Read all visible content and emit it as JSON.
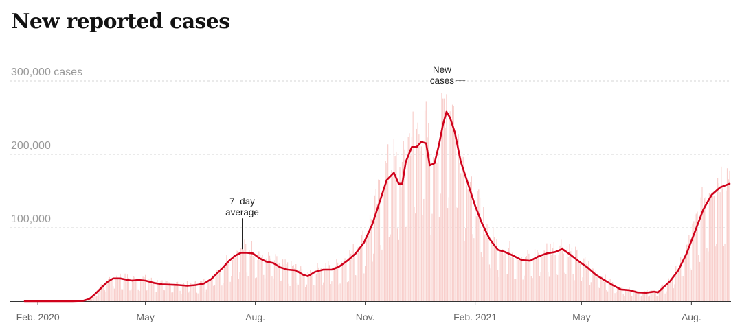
{
  "page": {
    "title": "New reported cases"
  },
  "chart_data": {
    "type": "bar",
    "title": "New reported cases",
    "ylim": [
      0,
      300000
    ],
    "y_ticks": [
      {
        "value": 300000,
        "label": "300,000 cases"
      },
      {
        "value": 200000,
        "label": "200,000"
      },
      {
        "value": 100000,
        "label": "100,000"
      }
    ],
    "x_ticks": [
      {
        "date": "2020-02-01",
        "label": "Feb. 2020"
      },
      {
        "date": "2020-05-01",
        "label": "May"
      },
      {
        "date": "2020-08-01",
        "label": "Aug."
      },
      {
        "date": "2020-11-01",
        "label": "Nov."
      },
      {
        "date": "2021-02-01",
        "label": "Feb. 2021"
      },
      {
        "date": "2021-05-01",
        "label": "May"
      },
      {
        "date": "2021-08-01",
        "label": "Aug."
      }
    ],
    "xlim": [
      "2020-01-21",
      "2021-09-02"
    ],
    "grid": true,
    "series": [
      {
        "name": "New cases",
        "type": "bar",
        "color": "#f8cfcc",
        "note": "daily reported new cases (bars)"
      },
      {
        "name": "7-day average",
        "type": "line",
        "color": "#d0021b",
        "points": [
          [
            "2020-01-21",
            0
          ],
          [
            "2020-03-01",
            0
          ],
          [
            "2020-03-10",
            600
          ],
          [
            "2020-03-15",
            3000
          ],
          [
            "2020-03-20",
            10000
          ],
          [
            "2020-03-25",
            18000
          ],
          [
            "2020-03-30",
            26000
          ],
          [
            "2020-04-04",
            31000
          ],
          [
            "2020-04-10",
            31000
          ],
          [
            "2020-04-16",
            29000
          ],
          [
            "2020-04-20",
            28000
          ],
          [
            "2020-04-25",
            29000
          ],
          [
            "2020-05-01",
            28000
          ],
          [
            "2020-05-08",
            25000
          ],
          [
            "2020-05-15",
            23000
          ],
          [
            "2020-05-22",
            22500
          ],
          [
            "2020-05-29",
            22000
          ],
          [
            "2020-06-05",
            21000
          ],
          [
            "2020-06-12",
            22000
          ],
          [
            "2020-06-19",
            24000
          ],
          [
            "2020-06-25",
            30000
          ],
          [
            "2020-06-30",
            38000
          ],
          [
            "2020-07-05",
            46000
          ],
          [
            "2020-07-10",
            55000
          ],
          [
            "2020-07-15",
            62000
          ],
          [
            "2020-07-20",
            66000
          ],
          [
            "2020-07-25",
            66000
          ],
          [
            "2020-07-30",
            65000
          ],
          [
            "2020-08-05",
            58000
          ],
          [
            "2020-08-10",
            54000
          ],
          [
            "2020-08-16",
            52000
          ],
          [
            "2020-08-22",
            46000
          ],
          [
            "2020-08-28",
            43000
          ],
          [
            "2020-09-04",
            42000
          ],
          [
            "2020-09-10",
            36000
          ],
          [
            "2020-09-14",
            34000
          ],
          [
            "2020-09-20",
            40000
          ],
          [
            "2020-09-27",
            43000
          ],
          [
            "2020-10-04",
            43000
          ],
          [
            "2020-10-10",
            47000
          ],
          [
            "2020-10-17",
            55000
          ],
          [
            "2020-10-24",
            65000
          ],
          [
            "2020-10-31",
            80000
          ],
          [
            "2020-11-07",
            105000
          ],
          [
            "2020-11-13",
            135000
          ],
          [
            "2020-11-19",
            165000
          ],
          [
            "2020-11-25",
            175000
          ],
          [
            "2020-11-29",
            160000
          ],
          [
            "2020-12-02",
            160000
          ],
          [
            "2020-12-05",
            190000
          ],
          [
            "2020-12-10",
            210000
          ],
          [
            "2020-12-14",
            210000
          ],
          [
            "2020-12-18",
            217000
          ],
          [
            "2020-12-22",
            215000
          ],
          [
            "2020-12-25",
            185000
          ],
          [
            "2020-12-29",
            188000
          ],
          [
            "2021-01-02",
            215000
          ],
          [
            "2021-01-05",
            240000
          ],
          [
            "2021-01-08",
            258000
          ],
          [
            "2021-01-11",
            250000
          ],
          [
            "2021-01-15",
            230000
          ],
          [
            "2021-01-20",
            190000
          ],
          [
            "2021-01-26",
            160000
          ],
          [
            "2021-02-01",
            130000
          ],
          [
            "2021-02-07",
            105000
          ],
          [
            "2021-02-13",
            85000
          ],
          [
            "2021-02-20",
            70000
          ],
          [
            "2021-02-26",
            67000
          ],
          [
            "2021-03-05",
            62000
          ],
          [
            "2021-03-12",
            56000
          ],
          [
            "2021-03-19",
            55000
          ],
          [
            "2021-03-26",
            61000
          ],
          [
            "2021-04-02",
            65000
          ],
          [
            "2021-04-09",
            67000
          ],
          [
            "2021-04-15",
            71000
          ],
          [
            "2021-04-22",
            63000
          ],
          [
            "2021-04-29",
            54000
          ],
          [
            "2021-05-06",
            46000
          ],
          [
            "2021-05-13",
            36000
          ],
          [
            "2021-05-20",
            29000
          ],
          [
            "2021-05-27",
            22000
          ],
          [
            "2021-06-03",
            16000
          ],
          [
            "2021-06-10",
            15000
          ],
          [
            "2021-06-17",
            12000
          ],
          [
            "2021-06-24",
            11500
          ],
          [
            "2021-07-01",
            13000
          ],
          [
            "2021-07-04",
            12000
          ],
          [
            "2021-07-08",
            18000
          ],
          [
            "2021-07-14",
            27000
          ],
          [
            "2021-07-21",
            42000
          ],
          [
            "2021-07-28",
            65000
          ],
          [
            "2021-08-04",
            95000
          ],
          [
            "2021-08-11",
            125000
          ],
          [
            "2021-08-18",
            145000
          ],
          [
            "2021-08-25",
            155000
          ],
          [
            "2021-09-02",
            160000
          ]
        ]
      }
    ],
    "annotations": [
      {
        "lines": [
          "New",
          "cases"
        ],
        "date": "2021-01-10",
        "value": 300000,
        "leader": "right"
      },
      {
        "lines": [
          "7–day",
          "average"
        ],
        "date": "2020-07-21",
        "value": 68000,
        "leader": "down"
      }
    ]
  }
}
